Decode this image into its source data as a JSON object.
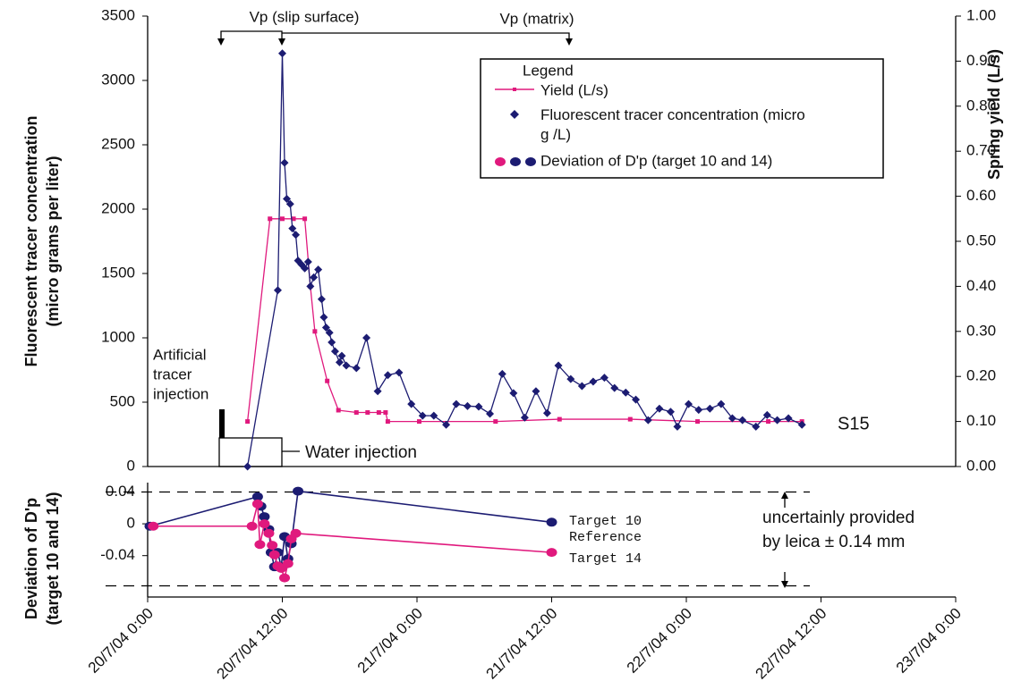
{
  "chart_data": [
    {
      "type": "line",
      "y_label": [
        "Fluorescent tracer concentration",
        "(micro grams per liter)"
      ],
      "y2_label": "Spring yield (L/s)",
      "xlim": [
        0,
        72
      ],
      "ylim": [
        0,
        3500
      ],
      "yticks": [
        0,
        500,
        1000,
        1500,
        2000,
        2500,
        3000,
        3500
      ],
      "y2lim": [
        0,
        1
      ],
      "y2ticks": [
        {
          "value": 0,
          "label": "0.00"
        },
        {
          "value": 0.1,
          "label": "0.10"
        },
        {
          "value": 0.2,
          "label": "0.20"
        },
        {
          "value": 0.3,
          "label": "0.30"
        },
        {
          "value": 0.4,
          "label": "0.40"
        },
        {
          "value": 0.5,
          "label": "0.50"
        },
        {
          "value": 0.6,
          "label": "0.60"
        },
        {
          "value": 0.7,
          "label": "0.70"
        },
        {
          "value": 0.8,
          "label": "0.80"
        },
        {
          "value": 0.9,
          "label": "0.90"
        },
        {
          "value": 1,
          "label": "1.00"
        }
      ],
      "legend_title": "Legend",
      "legend_extra": "Deviation of D'p (target 10 and 14)",
      "series": [
        {
          "name": "Yield (L/s)",
          "color": "#e0197d",
          "axis": "y2",
          "marker": "square",
          "x": [
            8.9,
            10.9,
            12.0,
            13.0,
            14.0,
            14.5,
            14.9,
            16.0,
            17.0,
            18.6,
            19.6,
            20.6,
            21.2,
            21.4,
            24.2,
            31.0,
            36.7,
            43.0,
            49.0,
            55.3,
            58.3
          ],
          "values": [
            0.1,
            0.55,
            0.55,
            0.55,
            0.55,
            0.4,
            0.3,
            0.19,
            0.125,
            0.12,
            0.12,
            0.12,
            0.12,
            0.1,
            0.1,
            0.1,
            0.105,
            0.105,
            0.1,
            0.1,
            0.1
          ]
        },
        {
          "name": "Fluorescent tracer concentration (micro g /L)",
          "color": "#1c1c72",
          "marker": "diamond",
          "x": [
            8.9,
            11.6,
            12.0,
            12.2,
            12.4,
            12.7,
            12.9,
            13.2,
            13.4,
            13.7,
            14.0,
            14.3,
            14.5,
            14.8,
            15.2,
            15.5,
            15.7,
            15.9,
            16.2,
            16.4,
            16.7,
            17.1,
            17.3,
            17.7,
            18.6,
            19.5,
            20.5,
            21.4,
            22.4,
            23.5,
            24.5,
            25.5,
            26.6,
            27.5,
            28.5,
            29.5,
            30.5,
            31.6,
            32.6,
            33.6,
            34.6,
            35.6,
            36.6,
            37.7,
            38.7,
            39.7,
            40.7,
            41.6,
            42.6,
            43.5,
            44.6,
            45.6,
            46.6,
            47.2,
            48.2,
            49.1,
            50.1,
            51.1,
            52.1,
            53.0,
            54.2,
            55.2,
            56.1,
            57.1,
            58.3
          ],
          "values": [
            0,
            1370,
            3210,
            2360,
            2080,
            2040,
            1850,
            1800,
            1600,
            1570,
            1540,
            1590,
            1400,
            1470,
            1530,
            1300,
            1160,
            1080,
            1040,
            965,
            895,
            810,
            860,
            785,
            765,
            1000,
            585,
            710,
            730,
            485,
            395,
            395,
            325,
            485,
            470,
            465,
            410,
            720,
            570,
            380,
            585,
            415,
            785,
            680,
            625,
            660,
            690,
            610,
            575,
            520,
            360,
            450,
            425,
            310,
            485,
            440,
            450,
            485,
            375,
            360,
            310,
            400,
            360,
            375,
            325
          ]
        }
      ],
      "annotations": [
        "Vp (slip surface)",
        "Vp (matrix)",
        "Artificial",
        "tracer",
        "injection",
        "Water injection",
        "S15"
      ]
    },
    {
      "type": "line",
      "y_label": [
        "Deviation of D'p",
        "(target 10 and 14)"
      ],
      "xlim": [
        0,
        72
      ],
      "xticks": [
        {
          "value": 0,
          "label": "20/7/04 0:00"
        },
        {
          "value": 12,
          "label": "20/7/04 12:00"
        },
        {
          "value": 24,
          "label": "21/7/04 0:00"
        },
        {
          "value": 36,
          "label": "21/7/04 12:00"
        },
        {
          "value": 48,
          "label": "22/7/04 0:00"
        },
        {
          "value": 60,
          "label": "22/7/04 12:00"
        },
        {
          "value": 72,
          "label": "23/7/04 0:00"
        }
      ],
      "ylim": [
        -0.092,
        0.054
      ],
      "yticks": [
        0.04,
        0,
        -0.04
      ],
      "reference_lines": [
        0.04,
        -0.078
      ],
      "series": [
        {
          "name": "Target 10",
          "color": "#1c1c72",
          "marker": "circle",
          "x": [
            0.2,
            9.8,
            10.1,
            10.4,
            10.8,
            11.0,
            11.3,
            11.6,
            11.9,
            12.2,
            12.5,
            12.8,
            13.4,
            36.0
          ],
          "values": [
            -0.003,
            0.034,
            0.022,
            0.009,
            -0.007,
            -0.036,
            -0.054,
            -0.036,
            -0.054,
            -0.016,
            -0.044,
            -0.025,
            0.041,
            0.002
          ]
        },
        {
          "name": "Target 14",
          "color": "#e0197d",
          "marker": "circle",
          "x": [
            0.5,
            9.3,
            9.8,
            10.0,
            10.4,
            10.8,
            11.1,
            11.3,
            11.6,
            11.9,
            12.2,
            12.5,
            12.8,
            13.2,
            36.0
          ],
          "values": [
            -0.003,
            -0.003,
            0.025,
            -0.026,
            0,
            -0.012,
            -0.027,
            -0.039,
            -0.053,
            -0.056,
            -0.068,
            -0.05,
            -0.019,
            -0.012,
            -0.036
          ]
        }
      ],
      "annotations": [
        "Reference",
        "uncertainly provided",
        "by leica ± 0.14 mm"
      ]
    }
  ]
}
